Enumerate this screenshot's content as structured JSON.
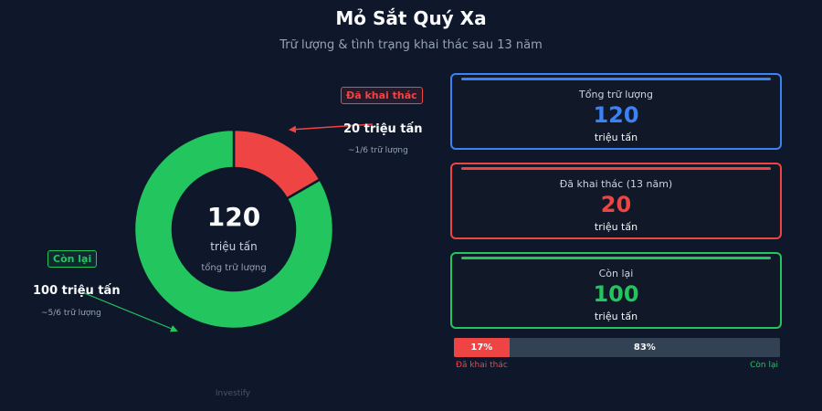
{
  "header": {
    "title": "Mỏ Sắt Quý Xa",
    "subtitle": "Trữ lượng & tình trạng khai thác sau 13 năm"
  },
  "chart_data": {
    "type": "donut",
    "total": 120,
    "unit": "triệu tấn",
    "series": [
      {
        "name": "Đã khai thác",
        "value": 20,
        "color": "#ef4444"
      },
      {
        "name": "Còn lại",
        "value": 100,
        "color": "#22c55e"
      }
    ],
    "center": {
      "value": "120",
      "unit": "triệu tấn",
      "caption": "tổng trữ lượng"
    },
    "annotations": {
      "mined": {
        "tag": "Đã khai thác",
        "value": "20 triệu tấn",
        "note": "~1/6 trữ lượng"
      },
      "remaining": {
        "tag": "Còn lại",
        "value": "100 triệu tấn",
        "note": "~5/6 trữ lượng"
      }
    }
  },
  "cards": [
    {
      "label": "Tổng trữ lượng",
      "value": "120",
      "unit": "triệu tấn",
      "color": "#3b82f6"
    },
    {
      "label": "Đã khai thác (13 năm)",
      "value": "20",
      "unit": "triệu tấn",
      "color": "#ef4444"
    },
    {
      "label": "Còn lại",
      "value": "100",
      "unit": "triệu tấn",
      "color": "#22c55e"
    }
  ],
  "progress": {
    "mined_percent": 17,
    "remaining_percent": 83,
    "mined_text": "17%",
    "remaining_text": "83%",
    "left_label": "Đã khai thác",
    "right_label": "Còn lại"
  },
  "footer": {
    "source": "Investify"
  }
}
